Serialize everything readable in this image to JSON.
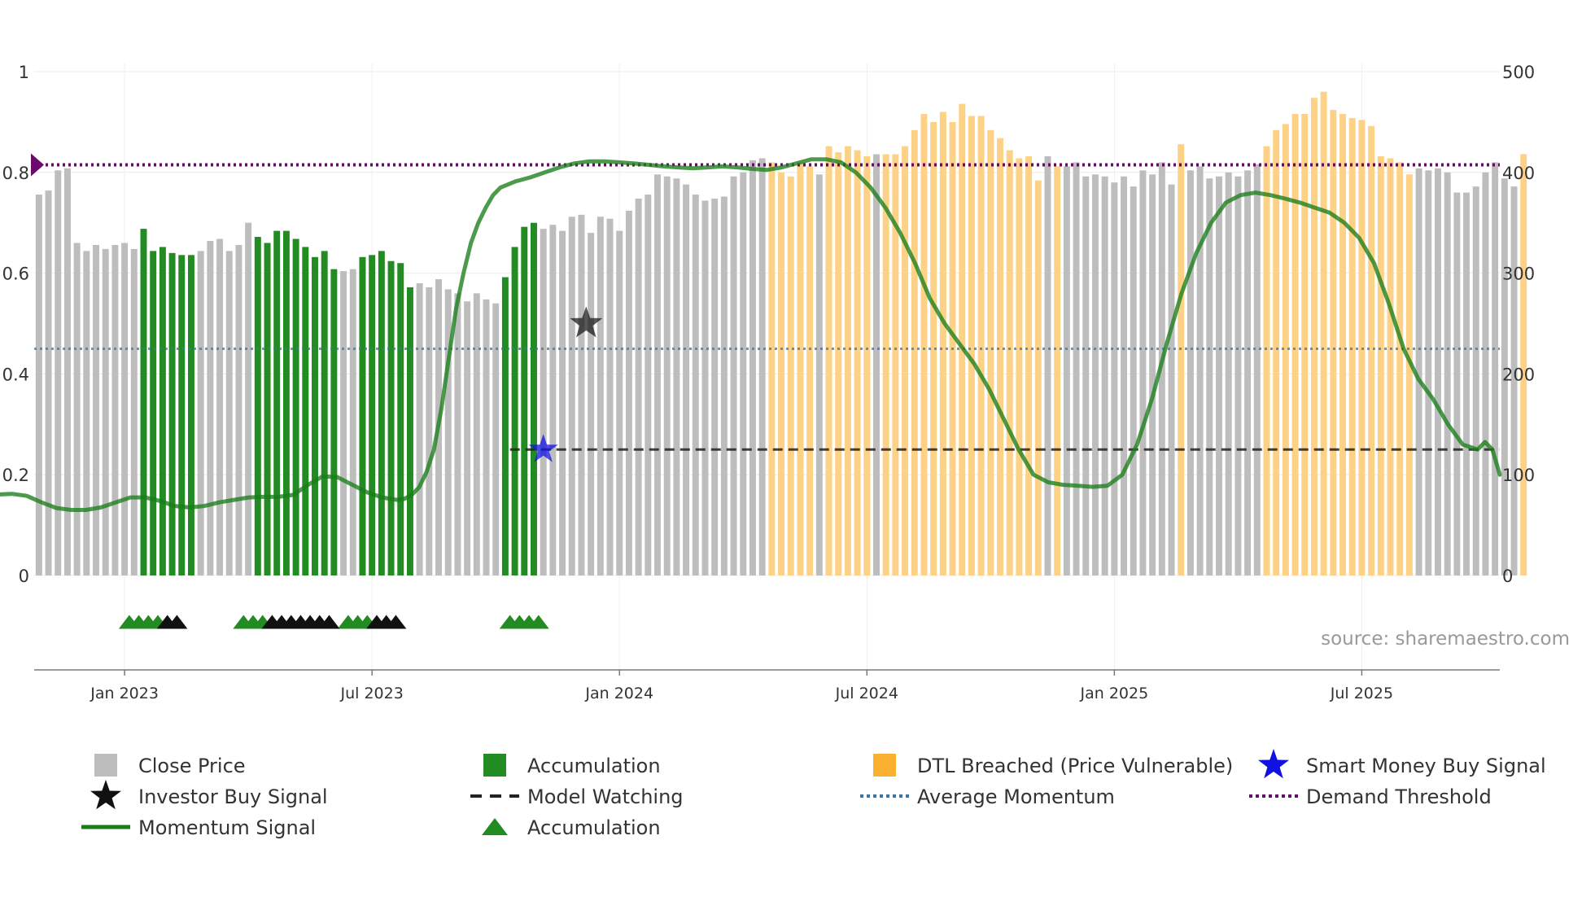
{
  "chart_data": {
    "type": "bar+line",
    "title": "",
    "source": "source: sharemaestro.com",
    "left_axis": {
      "ticks": [
        "0",
        "0.2",
        "0.4",
        "0.6",
        "0.8",
        "1"
      ],
      "range": [
        0,
        1
      ]
    },
    "right_axis": {
      "ticks": [
        "0",
        "100",
        "200",
        "300",
        "400",
        "500"
      ],
      "range": [
        0,
        500
      ]
    },
    "x_axis": {
      "ticks": [
        "Jan 2023",
        "Jul 2023",
        "Jan 2024",
        "Jul 2024",
        "Jan 2025",
        "Jul 2025"
      ],
      "range_weeks": [
        -9.5,
        144.5
      ],
      "tick_weeks": [
        0,
        26,
        52,
        78,
        104,
        130
      ]
    },
    "close_price": {
      "name": "Close Price",
      "values": [
        378,
        382,
        402,
        404,
        330,
        322,
        328,
        324,
        328,
        330,
        324,
        344,
        322,
        326,
        320,
        318,
        318,
        322,
        332,
        334,
        322,
        328,
        350,
        336,
        330,
        342,
        342,
        334,
        326,
        316,
        322,
        304,
        302,
        304,
        316,
        318,
        322,
        312,
        310,
        286,
        290,
        286,
        294,
        284,
        280,
        272,
        280,
        274,
        270,
        296,
        326,
        346,
        350,
        344,
        348,
        342,
        356,
        358,
        340,
        356,
        354,
        342,
        362,
        374,
        378,
        398,
        396,
        394,
        388,
        378,
        372,
        374,
        376,
        396,
        400,
        412,
        414,
        410,
        400,
        396,
        410,
        406,
        398,
        426,
        420,
        426,
        422,
        416,
        418,
        418,
        418,
        426,
        442,
        458,
        450,
        460,
        450,
        468,
        456,
        456,
        442,
        434,
        422,
        414,
        416,
        392,
        416,
        406,
        406,
        410,
        396,
        398,
        396,
        390,
        396,
        386,
        402,
        398,
        410,
        388,
        428,
        402,
        406,
        394,
        396,
        400,
        396,
        402,
        408,
        426,
        442,
        448,
        458,
        458,
        474,
        480,
        462,
        458,
        454,
        452,
        446,
        416,
        414,
        410,
        398,
        404,
        402,
        404,
        400,
        380,
        380,
        386,
        400,
        410,
        394,
        386,
        418
      ],
      "category": [
        "p",
        "p",
        "p",
        "p",
        "p",
        "p",
        "p",
        "p",
        "p",
        "p",
        "p",
        "a",
        "a",
        "a",
        "a",
        "a",
        "a",
        "p",
        "p",
        "p",
        "p",
        "p",
        "p",
        "a",
        "a",
        "a",
        "a",
        "a",
        "a",
        "a",
        "a",
        "a",
        "p",
        "p",
        "a",
        "a",
        "a",
        "a",
        "a",
        "a",
        "p",
        "p",
        "p",
        "p",
        "p",
        "p",
        "p",
        "p",
        "p",
        "a",
        "a",
        "a",
        "a",
        "p",
        "p",
        "p",
        "p",
        "p",
        "p",
        "p",
        "p",
        "p",
        "p",
        "p",
        "p",
        "p",
        "p",
        "p",
        "p",
        "p",
        "p",
        "p",
        "p",
        "p",
        "p",
        "p",
        "p",
        "d",
        "d",
        "d",
        "d",
        "d",
        "p",
        "d",
        "d",
        "d",
        "d",
        "d",
        "p",
        "d",
        "d",
        "d",
        "d",
        "d",
        "d",
        "d",
        "d",
        "d",
        "d",
        "d",
        "d",
        "d",
        "d",
        "d",
        "d",
        "d",
        "p",
        "d",
        "p",
        "p",
        "p",
        "p",
        "p",
        "p",
        "p",
        "p",
        "p",
        "p",
        "p",
        "p",
        "d",
        "p",
        "p",
        "p",
        "p",
        "p",
        "p",
        "p",
        "p",
        "d",
        "d",
        "d",
        "d",
        "d",
        "d",
        "d",
        "d",
        "d",
        "d",
        "d",
        "d",
        "d",
        "d",
        "d",
        "d",
        "p",
        "p",
        "p",
        "p",
        "p",
        "p",
        "p",
        "p",
        "p",
        "p",
        "p",
        "d"
      ]
    },
    "momentum": {
      "name": "Momentum Signal",
      "points": [
        [
          -9,
          0.158
        ],
        [
          -6,
          0.16
        ],
        [
          -3,
          0.162
        ],
        [
          -1,
          0.158
        ],
        [
          1,
          0.145
        ],
        [
          3,
          0.134
        ],
        [
          5,
          0.13
        ],
        [
          7,
          0.13
        ],
        [
          9,
          0.135
        ],
        [
          11,
          0.145
        ],
        [
          13,
          0.155
        ],
        [
          15,
          0.155
        ],
        [
          17,
          0.148
        ],
        [
          19,
          0.138
        ],
        [
          21,
          0.135
        ],
        [
          23,
          0.138
        ],
        [
          25,
          0.145
        ],
        [
          27,
          0.15
        ],
        [
          29,
          0.155
        ],
        [
          31,
          0.156
        ],
        [
          33,
          0.156
        ],
        [
          35,
          0.16
        ],
        [
          37,
          0.18
        ],
        [
          39,
          0.197
        ],
        [
          41,
          0.195
        ],
        [
          43,
          0.18
        ],
        [
          45,
          0.165
        ],
        [
          47,
          0.155
        ],
        [
          49,
          0.15
        ],
        [
          50,
          0.152
        ],
        [
          51,
          0.16
        ],
        [
          52,
          0.175
        ],
        [
          53,
          0.205
        ],
        [
          54,
          0.25
        ],
        [
          55,
          0.33
        ],
        [
          56,
          0.43
        ],
        [
          57,
          0.53
        ],
        [
          58,
          0.6
        ],
        [
          59,
          0.66
        ],
        [
          60,
          0.7
        ],
        [
          61,
          0.73
        ],
        [
          62,
          0.755
        ],
        [
          63,
          0.77
        ],
        [
          65,
          0.782
        ],
        [
          67,
          0.79
        ],
        [
          69,
          0.8
        ],
        [
          71,
          0.81
        ],
        [
          73,
          0.818
        ],
        [
          75,
          0.822
        ],
        [
          77,
          0.822
        ],
        [
          79,
          0.82
        ],
        [
          81,
          0.818
        ],
        [
          83,
          0.815
        ],
        [
          85,
          0.812
        ],
        [
          87,
          0.81
        ],
        [
          89,
          0.808
        ],
        [
          91,
          0.81
        ],
        [
          93,
          0.812
        ],
        [
          95,
          0.81
        ],
        [
          97,
          0.807
        ],
        [
          99,
          0.805
        ],
        [
          101,
          0.81
        ],
        [
          103,
          0.818
        ],
        [
          105,
          0.826
        ],
        [
          107,
          0.826
        ],
        [
          109,
          0.82
        ],
        [
          111,
          0.8
        ],
        [
          113,
          0.77
        ],
        [
          115,
          0.73
        ],
        [
          117,
          0.68
        ],
        [
          119,
          0.62
        ],
        [
          121,
          0.55
        ],
        [
          123,
          0.5
        ],
        [
          125,
          0.46
        ],
        [
          127,
          0.42
        ],
        [
          129,
          0.37
        ],
        [
          131,
          0.31
        ],
        [
          133,
          0.25
        ],
        [
          135,
          0.2
        ],
        [
          137,
          0.185
        ],
        [
          139,
          0.18
        ],
        [
          141,
          0.178
        ],
        [
          143,
          0.176
        ],
        [
          145,
          0.178
        ],
        [
          147,
          0.2
        ],
        [
          149,
          0.26
        ],
        [
          151,
          0.35
        ],
        [
          153,
          0.46
        ],
        [
          155,
          0.56
        ],
        [
          157,
          0.64
        ],
        [
          159,
          0.7
        ],
        [
          161,
          0.74
        ],
        [
          163,
          0.755
        ],
        [
          165,
          0.76
        ],
        [
          167,
          0.755
        ],
        [
          169,
          0.748
        ],
        [
          171,
          0.74
        ],
        [
          173,
          0.73
        ],
        [
          175,
          0.72
        ],
        [
          177,
          0.7
        ],
        [
          179,
          0.67
        ],
        [
          181,
          0.62
        ],
        [
          183,
          0.54
        ],
        [
          185,
          0.45
        ],
        [
          187,
          0.39
        ],
        [
          189,
          0.35
        ],
        [
          191,
          0.3
        ],
        [
          193,
          0.26
        ],
        [
          195,
          0.25
        ],
        [
          196,
          0.265
        ],
        [
          197,
          0.25
        ],
        [
          198,
          0.2
        ]
      ]
    },
    "average_momentum": {
      "name": "Average Momentum",
      "value": 0.45
    },
    "demand_threshold": {
      "name": "Demand Threshold",
      "value": 0.815
    },
    "model_watching": {
      "name": "Model Watching",
      "value": 0.25,
      "from_week": 40.5
    },
    "investor_buy_signal": {
      "name": "Investor Buy Signal",
      "x": 48.5,
      "y": 0.5
    },
    "smart_money_buy_signal": {
      "name": "Smart Money Buy Signal",
      "x": 44,
      "y": 0.25
    },
    "accumulation_markers": {
      "green": [
        [
          0.5,
          1.5,
          2.5,
          3.5
        ],
        [
          12.5,
          13.5,
          14.5
        ],
        [
          23.5,
          24.5,
          25.5
        ],
        [
          40.5,
          41.5,
          42.5,
          43.5
        ]
      ],
      "black": [
        [
          4.5,
          5.5
        ],
        [
          15.5,
          16.5,
          17.5,
          18.5,
          19.5,
          20.5,
          21.5
        ],
        [
          26.5,
          27.5,
          28.5
        ]
      ]
    },
    "legend": [
      {
        "label": "Close Price",
        "symbol": "gray-square"
      },
      {
        "label": "Accumulation",
        "symbol": "green-square"
      },
      {
        "label": "DTL Breached (Price Vulnerable)",
        "symbol": "orange-square"
      },
      {
        "label": "Smart Money Buy Signal",
        "symbol": "blue-star"
      },
      {
        "label": "Investor Buy Signal",
        "symbol": "black-star"
      },
      {
        "label": "Model Watching",
        "symbol": "black-dash"
      },
      {
        "label": "Average Momentum",
        "symbol": "blue-dot"
      },
      {
        "label": "Demand Threshold",
        "symbol": "purple-dot"
      },
      {
        "label": "Momentum Signal",
        "symbol": "green-line"
      },
      {
        "label": "Accumulation",
        "symbol": "green-triangle"
      }
    ],
    "colors": {
      "price": "#bdbdbd",
      "accumulation": "#228b22",
      "dtl": "#fdd286",
      "momentum": "#1a7d1a",
      "avg": "#3b76a6",
      "threshold": "#6b0a6b",
      "watch": "#222222",
      "smart_star": "#1212e0",
      "investor_star": "#111111"
    }
  }
}
